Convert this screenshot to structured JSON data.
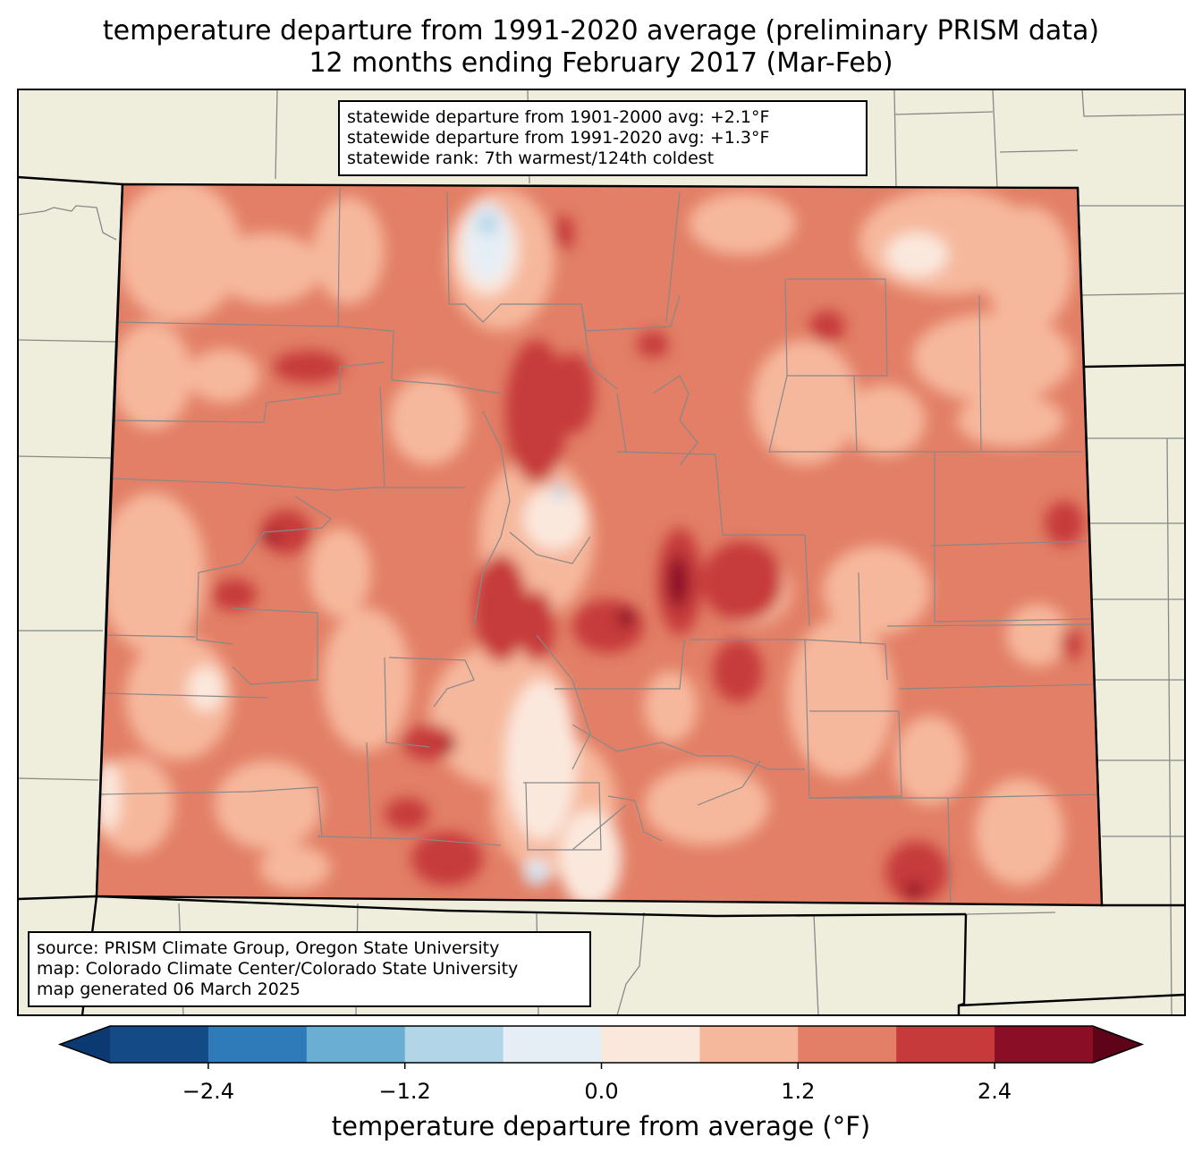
{
  "title": {
    "line1": "temperature departure from 1991-2020 average (preliminary PRISM data)",
    "line2": "12 months ending February 2017 (Mar-Feb)"
  },
  "stats": {
    "line1": "statewide departure from 1901-2000 avg: +2.1°F",
    "line2": "statewide departure from 1991-2020 avg: +1.3°F",
    "line3": "statewide rank: 7th warmest/124th coldest"
  },
  "source": {
    "line1": "source: PRISM Climate Group, Oregon State University",
    "line2": "map: Colorado Climate Center/Colorado State University",
    "line3": "map generated 06 March 2025"
  },
  "colorbar": {
    "title": "temperature departure from average (°F)",
    "tick_labels": [
      "−2.4",
      "−1.2",
      "0.0",
      "1.2",
      "2.4"
    ],
    "ticks": [
      -2.4,
      -1.2,
      0.0,
      1.2,
      2.4
    ],
    "range": [
      -3.0,
      3.0
    ],
    "colors": [
      "#0b3a72",
      "#144a86",
      "#2f7ab8",
      "#6aaed3",
      "#b2d5e8",
      "#e6eef5",
      "#fbe8dd",
      "#f6b89c",
      "#e27f66",
      "#c63a3b",
      "#8a0e25",
      "#5f0418"
    ]
  },
  "map_colors": {
    "land": "#efeedc",
    "borders": "#888888",
    "state_border": "#000000"
  }
}
